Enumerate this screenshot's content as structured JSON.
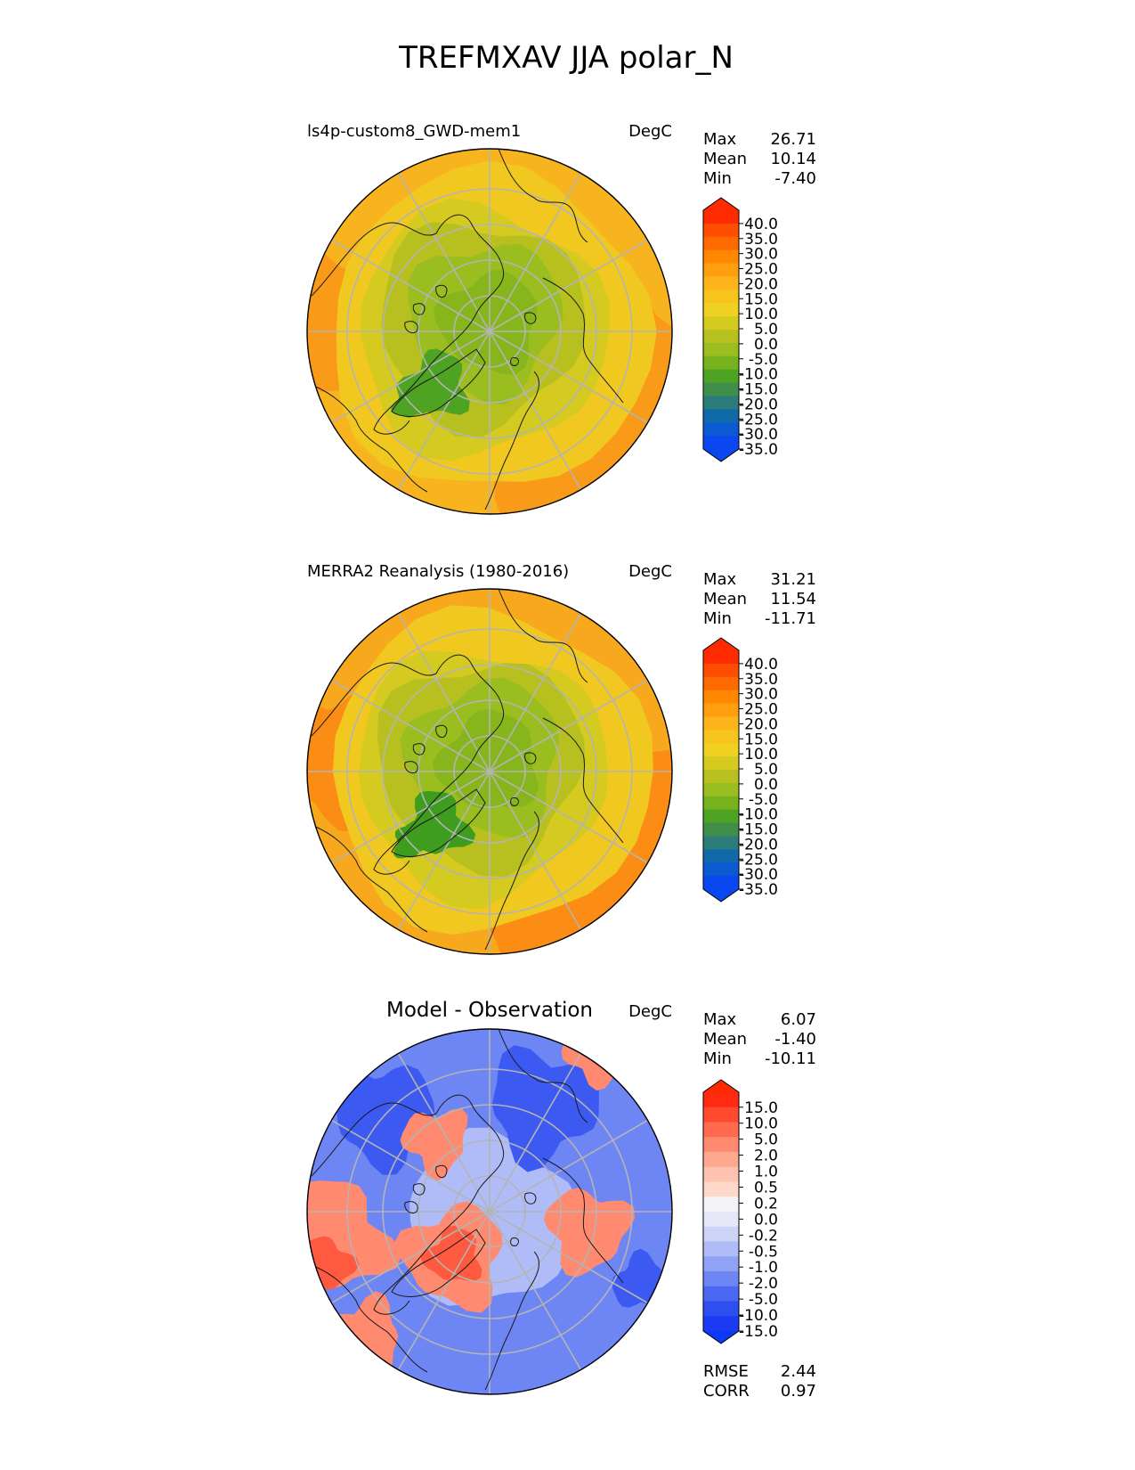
{
  "title": "TREFMXAV JJA polar_N",
  "panels": [
    {
      "name": "test",
      "label": "ls4p-custom8_GWD-mem1",
      "units": "DegC",
      "stats": [
        {
          "label": "Max",
          "value": "26.71"
        },
        {
          "label": "Mean",
          "value": "10.14"
        },
        {
          "label": "Min",
          "value": "-7.40"
        }
      ],
      "colorbar": {
        "ticks": [
          "40.0",
          "35.0",
          "30.0",
          "25.0",
          "20.0",
          "15.0",
          "10.0",
          "5.0",
          "0.0",
          "-5.0",
          "-10.0",
          "-15.0",
          "-20.0",
          "-25.0",
          "-30.0",
          "-35.0"
        ],
        "colors": [
          "#ff2a00",
          "#ff4d00",
          "#ff6a00",
          "#ff8800",
          "#ff9f10",
          "#fdb31a",
          "#f7c41e",
          "#f0d020",
          "#d4ca20",
          "#b8c020",
          "#9abd20",
          "#75b21e",
          "#4ea322",
          "#3f8f4a",
          "#2c7c7c",
          "#106aa8",
          "#0c5ad2",
          "#0a47f0"
        ],
        "top_color": "#ff2a00",
        "bottom_color": "#0a47f0"
      },
      "map_colors": {
        "pole": "#86b51c",
        "ring2": "#9abd20",
        "ring3": "#b8c020",
        "ring4": "#d4ca20",
        "ring5": "#f0c820",
        "ring6": "#f7b41e",
        "warm": "#f99a18",
        "cold_patch": "#4ea322"
      }
    },
    {
      "name": "reference",
      "label": "MERRA2 Reanalysis (1980-2016)",
      "units": "DegC",
      "stats": [
        {
          "label": "Max",
          "value": "31.21"
        },
        {
          "label": "Mean",
          "value": "11.54"
        },
        {
          "label": "Min",
          "value": "-11.71"
        }
      ],
      "colorbar": {
        "ticks": [
          "40.0",
          "35.0",
          "30.0",
          "25.0",
          "20.0",
          "15.0",
          "10.0",
          "5.0",
          "0.0",
          "-5.0",
          "-10.0",
          "-15.0",
          "-20.0",
          "-25.0",
          "-30.0",
          "-35.0"
        ],
        "colors": [
          "#ff2a00",
          "#ff4d00",
          "#ff6a00",
          "#ff8800",
          "#ff9f10",
          "#fdb31a",
          "#f7c41e",
          "#f0d020",
          "#d4ca20",
          "#b8c020",
          "#9abd20",
          "#75b21e",
          "#4ea322",
          "#3f8f4a",
          "#2c7c7c",
          "#106aa8",
          "#0c5ad2",
          "#0a47f0"
        ],
        "top_color": "#ff2a00",
        "bottom_color": "#0a47f0"
      },
      "map_colors": {
        "pole": "#86b51c",
        "ring2": "#9abd20",
        "ring3": "#b8c020",
        "ring4": "#d4ca20",
        "ring5": "#f0c820",
        "ring6": "#f7a81c",
        "warm": "#fb8c14",
        "cold_patch": "#3e9c1e"
      }
    },
    {
      "name": "diff",
      "label": "Model - Observation",
      "units": "DegC",
      "stats": [
        {
          "label": "Max",
          "value": "6.07"
        },
        {
          "label": "Mean",
          "value": "-1.40"
        },
        {
          "label": "Min",
          "value": "-10.11"
        }
      ],
      "extra_stats": [
        {
          "label": "RMSE",
          "value": "2.44"
        },
        {
          "label": "CORR",
          "value": "0.97"
        }
      ],
      "colorbar": {
        "ticks": [
          "15.0",
          "10.0",
          "5.0",
          "2.0",
          "1.0",
          "0.5",
          "0.2",
          "0.0",
          "-0.2",
          "-0.5",
          "-1.0",
          "-2.0",
          "-5.0",
          "-10.0",
          "-15.0"
        ],
        "colors": [
          "#ff2a10",
          "#ff4a30",
          "#ff6a50",
          "#ff8a70",
          "#ffa890",
          "#ffc2b0",
          "#ffd8cc",
          "#f4f4f8",
          "#e6e8f8",
          "#cdd4f8",
          "#b0bcf8",
          "#8fa2f6",
          "#6e86f4",
          "#4c68f2",
          "#2e4ef2",
          "#1a3af4"
        ],
        "top_color": "#ff2a00",
        "bottom_color": "#0a3af6"
      },
      "map_colors": {
        "base": "#6e86f4",
        "inner": "#b0bcf8",
        "warm": "#ff8a70",
        "hot": "#ff5a40",
        "deep": "#3c5af2"
      }
    }
  ]
}
